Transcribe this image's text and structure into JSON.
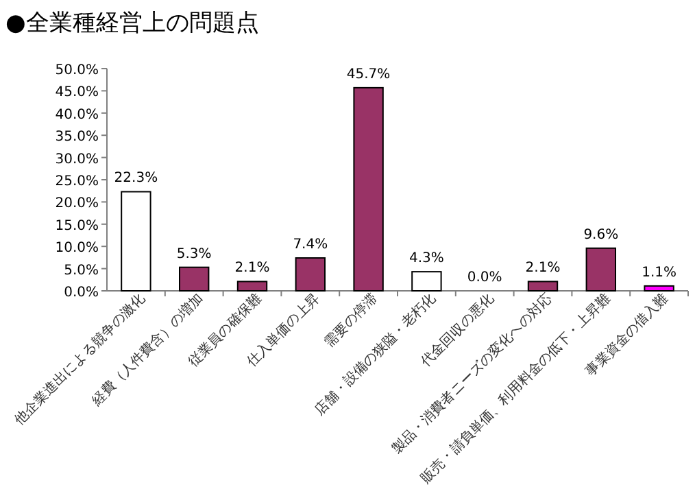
{
  "chart_data": {
    "type": "bar",
    "title": "●全業種経営上の問題点",
    "categories": [
      "他企業進出による競争の激化",
      "経費（人件費含）の増加",
      "従業員の確保難",
      "仕入単価の上昇",
      "需要の停滞",
      "店舗・設備の狭隘・老朽化",
      "代金回収の悪化",
      "製品・消費者ニーズの変化への対応",
      "販売・請負単価、利用料金の低下・上昇難",
      "事業資金の借入難"
    ],
    "values": [
      22.3,
      5.3,
      2.1,
      7.4,
      45.7,
      4.3,
      0.0,
      2.1,
      9.6,
      1.1
    ],
    "colors": [
      "#ffffff",
      "#993366",
      "#993366",
      "#993366",
      "#993366",
      "#ffffff",
      "#ffffff",
      "#993366",
      "#993366",
      "#ff00ff"
    ],
    "value_labels": [
      "22.3%",
      "5.3%",
      "2.1%",
      "7.4%",
      "45.7%",
      "4.3%",
      "0.0%",
      "2.1%",
      "9.6%",
      "1.1%"
    ],
    "ylim": [
      0,
      50
    ],
    "yticks": [
      {
        "value": 0,
        "label": "0.0%"
      },
      {
        "value": 5,
        "label": "5.0%"
      },
      {
        "value": 10,
        "label": "10.0%"
      },
      {
        "value": 15,
        "label": "15.0%"
      },
      {
        "value": 20,
        "label": "20.0%"
      },
      {
        "value": 25,
        "label": "25.0%"
      },
      {
        "value": 30,
        "label": "30.0%"
      },
      {
        "value": 35,
        "label": "35.0%"
      },
      {
        "value": 40,
        "label": "40.0%"
      },
      {
        "value": 45,
        "label": "45.0%"
      },
      {
        "value": 50,
        "label": "50.0%"
      }
    ],
    "grid": false
  }
}
